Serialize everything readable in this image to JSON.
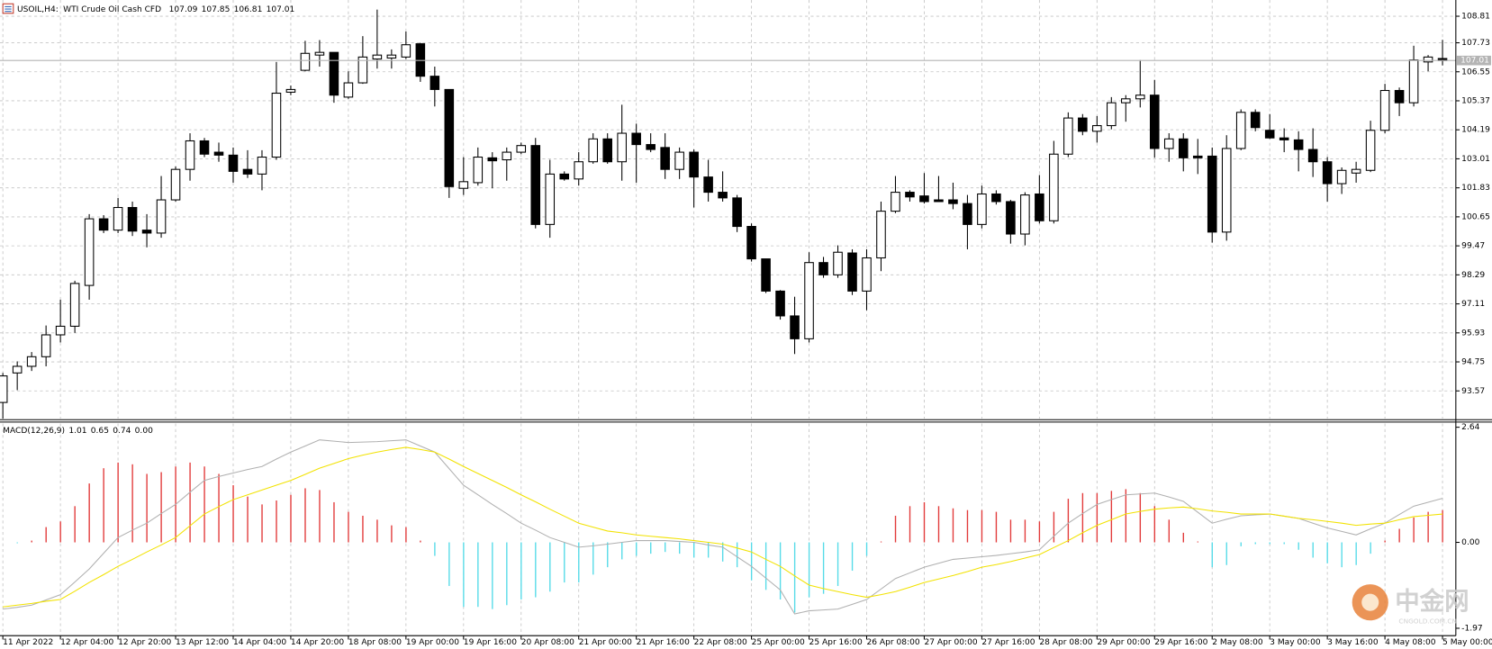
{
  "chart_data": [
    {
      "type": "candlestick",
      "symbol": "USOIL,H4:",
      "title": "WTI Crude Oil Cash CFD",
      "categories": [
        "11 Apr 2022",
        null,
        null,
        null,
        "12 Apr 04:00",
        null,
        null,
        null,
        "12 Apr 20:00",
        null,
        null,
        null,
        "13 Apr 12:00",
        null,
        null,
        null,
        "14 Apr 04:00",
        null,
        null,
        null,
        "14 Apr 20:00",
        null,
        null,
        null,
        "18 Apr 08:00",
        null,
        null,
        null,
        "19 Apr 00:00",
        null,
        null,
        null,
        "19 Apr 16:00",
        null,
        null,
        null,
        "20 Apr 08:00",
        null,
        null,
        null,
        "21 Apr 00:00",
        null,
        null,
        null,
        "21 Apr 16:00",
        null,
        null,
        null,
        "22 Apr 08:00",
        null,
        null,
        null,
        "25 Apr 00:00",
        null,
        null,
        null,
        "25 Apr 16:00",
        null,
        null,
        null,
        "26 Apr 08:00",
        null,
        null,
        null,
        "27 Apr 00:00",
        null,
        null,
        null,
        "27 Apr 16:00",
        null,
        null,
        null,
        "28 Apr 08:00",
        null,
        null,
        null,
        "29 Apr 00:00",
        null,
        null,
        null,
        "29 Apr 16:00",
        null,
        null,
        null,
        "2 May 08:00",
        null,
        null,
        null,
        "3 May 00:00",
        null,
        null,
        null,
        "3 May 16:00",
        null,
        null,
        null,
        "4 May 08:00",
        null,
        null,
        null,
        "5 May 00:00"
      ],
      "open": [
        93.1,
        94.3,
        94.57,
        94.96,
        95.85,
        96.2,
        97.86,
        100.57,
        100.11,
        101.03,
        100.11,
        99.99,
        101.34,
        102.58,
        103.74,
        103.28,
        103.16,
        102.58,
        102.39,
        103.08,
        105.72,
        106.61,
        107.23,
        107.34,
        105.52,
        106.1,
        107.07,
        107.11,
        107.15,
        107.69,
        106.37,
        105.83,
        101.81,
        102.04,
        103.05,
        102.97,
        103.28,
        103.55,
        100.34,
        102.39,
        102.19,
        102.89,
        103.82,
        102.89,
        104.05,
        103.59,
        103.47,
        102.58,
        103.28,
        102.27,
        101.65,
        101.42,
        100.26,
        98.94,
        97.63,
        96.62,
        95.69,
        98.79,
        98.29,
        99.18,
        97.63,
        98.98,
        100.88,
        101.65,
        101.5,
        101.34,
        101.34,
        101.19,
        100.34,
        101.58,
        101.27,
        99.95,
        101.58,
        100.49,
        103.2,
        104.67,
        104.13,
        104.36,
        105.29,
        105.45,
        105.6,
        103.43,
        103.82,
        103.12,
        103.12,
        100.03,
        103.43,
        104.9,
        104.17,
        103.86,
        103.78,
        103.39,
        102.89,
        102.0,
        102.43,
        102.54,
        104.17,
        105.79,
        105.29,
        106.95,
        107.09
      ],
      "high": [
        94.3,
        94.77,
        95.15,
        96.23,
        97.28,
        98.05,
        100.76,
        100.72,
        101.42,
        101.27,
        100.76,
        102.31,
        102.7,
        104.05,
        103.86,
        103.67,
        103.47,
        103.36,
        103.36,
        106.95,
        105.99,
        107.81,
        107.84,
        107.34,
        106.57,
        108.0,
        109.08,
        107.46,
        108.19,
        107.73,
        106.76,
        105.83,
        103.08,
        103.47,
        103.28,
        103.47,
        103.67,
        103.86,
        102.97,
        102.5,
        103.28,
        104.05,
        104.05,
        105.21,
        104.44,
        104.05,
        104.05,
        103.47,
        103.39,
        102.97,
        102.5,
        101.54,
        100.38,
        98.94,
        97.67,
        97.4,
        99.21,
        99.02,
        99.49,
        99.33,
        99.33,
        101.27,
        102.31,
        101.73,
        102.43,
        102.31,
        102.04,
        101.54,
        101.92,
        101.73,
        101.34,
        101.65,
        102.35,
        103.74,
        104.9,
        104.83,
        104.75,
        105.52,
        105.6,
        107.03,
        106.22,
        104.05,
        104.05,
        103.82,
        103.47,
        103.97,
        105.02,
        105.02,
        104.83,
        104.25,
        104.13,
        104.25,
        103.08,
        102.66,
        102.89,
        104.56,
        106.06,
        105.91,
        107.61,
        107.23,
        107.85
      ],
      "low": [
        92.44,
        93.6,
        94.38,
        94.57,
        95.54,
        95.93,
        97.28,
        99.99,
        99.99,
        99.87,
        99.41,
        99.8,
        101.27,
        102.12,
        103.08,
        102.89,
        102.04,
        102.23,
        101.73,
        102.97,
        105.6,
        106.57,
        106.76,
        105.29,
        105.45,
        106.06,
        106.68,
        106.68,
        107.07,
        106.14,
        105.14,
        101.42,
        101.54,
        101.92,
        101.81,
        102.12,
        103.2,
        100.18,
        99.8,
        102.12,
        101.92,
        102.81,
        102.81,
        102.12,
        102.04,
        103.28,
        102.19,
        102.19,
        101.03,
        101.27,
        101.27,
        100.03,
        98.83,
        97.55,
        96.47,
        95.07,
        95.54,
        98.17,
        98.17,
        97.47,
        96.85,
        98.44,
        100.8,
        101.27,
        101.19,
        101.27,
        100.96,
        99.33,
        100.18,
        101.15,
        99.56,
        99.49,
        100.38,
        100.38,
        103.08,
        103.97,
        103.67,
        104.21,
        104.52,
        105.1,
        103.05,
        102.89,
        102.5,
        102.39,
        99.6,
        99.68,
        103.36,
        104.13,
        103.82,
        103.28,
        102.5,
        102.27,
        101.27,
        101.58,
        102.04,
        102.47,
        104.05,
        104.75,
        105.14,
        106.57,
        106.81
      ],
      "close": [
        94.18,
        94.57,
        94.96,
        95.85,
        96.2,
        97.94,
        100.57,
        100.11,
        101.03,
        100.07,
        99.99,
        101.34,
        102.58,
        103.74,
        103.2,
        103.16,
        102.5,
        102.39,
        103.08,
        105.68,
        105.83,
        107.3,
        107.34,
        105.6,
        106.1,
        107.15,
        107.23,
        107.23,
        107.65,
        106.37,
        105.83,
        101.88,
        102.08,
        103.08,
        102.93,
        103.28,
        103.55,
        100.34,
        102.39,
        102.19,
        102.89,
        103.82,
        102.89,
        104.05,
        103.59,
        103.39,
        102.58,
        103.28,
        102.27,
        101.65,
        101.42,
        100.26,
        98.94,
        97.63,
        96.62,
        95.69,
        98.79,
        98.29,
        99.21,
        97.63,
        98.98,
        100.88,
        101.65,
        101.46,
        101.27,
        101.27,
        101.19,
        100.34,
        101.58,
        101.27,
        99.95,
        101.54,
        100.49,
        103.2,
        104.67,
        104.13,
        104.36,
        105.29,
        105.45,
        105.6,
        103.43,
        103.82,
        103.05,
        103.05,
        100.03,
        103.43,
        104.9,
        104.28,
        103.86,
        103.78,
        103.39,
        102.89,
        102.0,
        102.54,
        102.58,
        104.17,
        105.79,
        105.29,
        107.03,
        107.15,
        107.01
      ],
      "up_color": "#ffffff",
      "down_color": "#000000",
      "current_price_line": true,
      "ylim": [
        92.4,
        109.47
      ],
      "yticks": [
        108.81,
        107.73,
        106.55,
        105.37,
        104.19,
        103.01,
        101.83,
        100.65,
        99.47,
        98.29,
        97.11,
        95.93,
        94.75,
        93.57
      ],
      "grid": true
    },
    {
      "type": "macd",
      "title": "MACD(12,26,9)",
      "extra_value": {
        "value": 0,
        "label": "0.00"
      },
      "series": [
        {
          "type": "line",
          "color": "#b0b0b0",
          "values": [
            -1.53,
            -1.49,
            -1.44,
            -1.32,
            -1.2,
            -0.91,
            -0.61,
            -0.25,
            0.11,
            0.28,
            0.44,
            0.66,
            0.87,
            1.15,
            1.42,
            1.51,
            1.59,
            1.67,
            1.74,
            1.91,
            2.07,
            2.21,
            2.35,
            2.32,
            2.29,
            2.3,
            2.31,
            2.33,
            2.35,
            2.21,
            2.07,
            1.69,
            1.31,
            1.09,
            0.87,
            0.66,
            0.44,
            0.28,
            0.11,
            0.0,
            -0.11,
            -0.08,
            -0.04,
            0.0,
            0.04,
            0.04,
            0.04,
            0.02,
            0.0,
            -0.06,
            -0.11,
            -0.33,
            -0.55,
            -0.82,
            -1.09,
            -1.64,
            -1.57,
            -1.55,
            -1.53,
            -1.42,
            -1.31,
            -1.07,
            -0.83,
            -0.7,
            -0.57,
            -0.48,
            -0.39,
            -0.36,
            -0.33,
            -0.3,
            -0.26,
            -0.22,
            -0.17,
            0.14,
            0.44,
            0.66,
            0.87,
            0.98,
            1.09,
            1.11,
            1.13,
            1.04,
            0.94,
            0.69,
            0.44,
            0.53,
            0.61,
            0.63,
            0.65,
            0.6,
            0.55,
            0.44,
            0.33,
            0.25,
            0.17,
            0.31,
            0.44,
            0.64,
            0.83,
            0.92,
            1.01
          ]
        },
        {
          "type": "line",
          "color": "#f2e200",
          "values": [
            -1.48,
            -1.44,
            -1.4,
            -1.35,
            -1.31,
            -1.12,
            -0.92,
            -0.74,
            -0.55,
            -0.39,
            -0.22,
            -0.06,
            0.11,
            0.38,
            0.65,
            0.82,
            0.98,
            1.09,
            1.2,
            1.31,
            1.42,
            1.56,
            1.7,
            1.81,
            1.92,
            2.0,
            2.07,
            2.13,
            2.18,
            2.13,
            2.07,
            1.91,
            1.74,
            1.58,
            1.42,
            1.26,
            1.09,
            0.93,
            0.76,
            0.6,
            0.44,
            0.35,
            0.26,
            0.22,
            0.17,
            0.14,
            0.11,
            0.08,
            0.04,
            0.0,
            -0.04,
            -0.13,
            -0.22,
            -0.39,
            -0.55,
            -0.77,
            -0.98,
            -1.06,
            -1.13,
            -1.2,
            -1.26,
            -1.2,
            -1.13,
            -1.03,
            -0.92,
            -0.84,
            -0.76,
            -0.67,
            -0.57,
            -0.51,
            -0.44,
            -0.36,
            -0.28,
            -0.12,
            0.04,
            0.22,
            0.39,
            0.52,
            0.65,
            0.71,
            0.76,
            0.79,
            0.81,
            0.77,
            0.72,
            0.69,
            0.65,
            0.65,
            0.65,
            0.6,
            0.55,
            0.52,
            0.48,
            0.44,
            0.39,
            0.42,
            0.44,
            0.52,
            0.59,
            0.62,
            0.65
          ]
        },
        {
          "type": "bar",
          "color": "#e23a3a",
          "negative_color": "#56dbe8",
          "values": [
            0.0,
            -0.02,
            0.04,
            0.35,
            0.48,
            0.83,
            1.35,
            1.7,
            1.83,
            1.79,
            1.57,
            1.61,
            1.74,
            1.83,
            1.74,
            1.57,
            1.31,
            1.05,
            0.87,
            0.96,
            1.09,
            1.24,
            1.2,
            0.92,
            0.7,
            0.61,
            0.52,
            0.39,
            0.35,
            0.04,
            -0.31,
            -1.0,
            -1.48,
            -1.48,
            -1.53,
            -1.44,
            -1.31,
            -1.26,
            -1.13,
            -0.92,
            -0.92,
            -0.74,
            -0.57,
            -0.39,
            -0.31,
            -0.26,
            -0.22,
            -0.26,
            -0.35,
            -0.35,
            -0.44,
            -0.57,
            -0.87,
            -1.09,
            -1.31,
            -1.61,
            -1.26,
            -1.18,
            -1.0,
            -0.65,
            -0.31,
            0.02,
            0.61,
            0.83,
            0.92,
            0.83,
            0.78,
            0.74,
            0.74,
            0.7,
            0.52,
            0.52,
            0.48,
            0.7,
            1.0,
            1.13,
            1.13,
            1.18,
            1.22,
            1.13,
            0.83,
            0.52,
            0.22,
            0.02,
            -0.57,
            -0.52,
            -0.09,
            -0.04,
            -0.04,
            -0.04,
            -0.17,
            -0.35,
            -0.48,
            -0.57,
            -0.52,
            -0.26,
            0.04,
            0.31,
            0.57,
            0.7,
            0.74
          ]
        }
      ],
      "ylim": [
        -2.14,
        2.77
      ],
      "yticks": [
        2.64,
        {
          "value": 0,
          "label": "0.00"
        },
        -1.97
      ]
    }
  ],
  "watermark": {
    "name": "中金网",
    "site": "CNGOLD.COM.CN"
  }
}
